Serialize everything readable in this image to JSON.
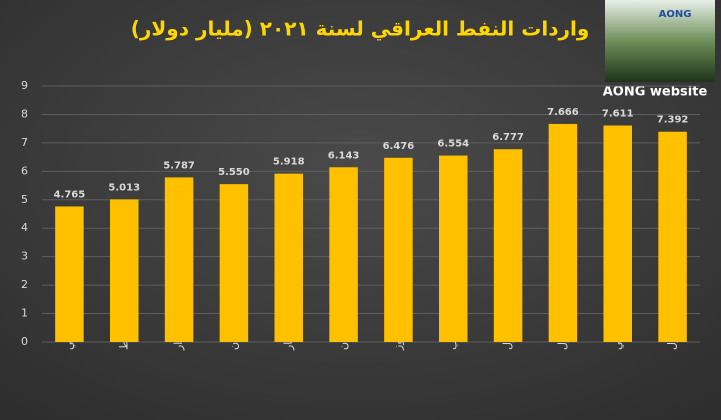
{
  "chart_data": {
    "type": "bar",
    "title": "واردات النفط العراقي لسنة ٢٠٢١ (مليار دولار)",
    "logo": "AONG",
    "source": "AONG website",
    "categories": [
      "كانون الثاني",
      "شباط",
      "آذار",
      "نيسان",
      "أيار",
      "حزيران",
      "تموز",
      "آب",
      "أيلول",
      "تشرين الأول",
      "تشرين الثاني",
      "كانون الأول"
    ],
    "values": [
      4.765,
      5.013,
      5.787,
      5.55,
      5.918,
      6.143,
      6.476,
      6.554,
      6.777,
      7.666,
      7.611,
      7.392
    ],
    "value_labels": [
      "4.765",
      "5.013",
      "5.787",
      "5.550",
      "5.918",
      "6.143",
      "6.476",
      "6.554",
      "6.777",
      "7.666",
      "7.611",
      "7.392"
    ],
    "color": "#ffc000",
    "ylim": [
      0,
      9
    ],
    "yticks": [
      0,
      1,
      2,
      3,
      4,
      5,
      6,
      7,
      8,
      9
    ],
    "grid": true
  }
}
